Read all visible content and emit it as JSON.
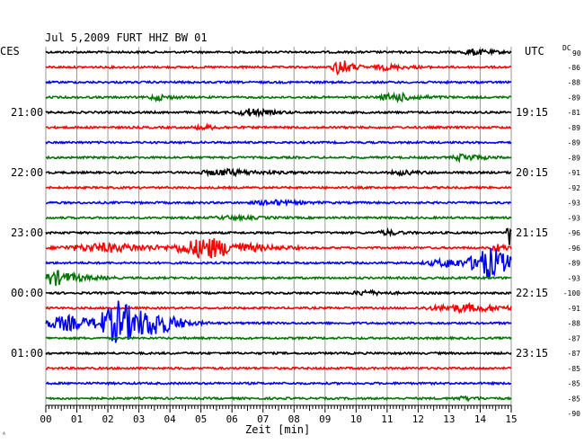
{
  "chart_data": {
    "type": "line",
    "title": "Jul 5,2009   FURT HHZ BW 01",
    "left_header": "CES",
    "right_header": "UTC",
    "dc_header": "DC",
    "dc_header_sub": "90",
    "xlabel": "Zeit [min]",
    "x_ticks": [
      "00",
      "01",
      "02",
      "03",
      "04",
      "05",
      "06",
      "07",
      "08",
      "09",
      "10",
      "11",
      "12",
      "13",
      "14",
      "15"
    ],
    "xlim": [
      0,
      15
    ],
    "trace_colors": [
      "#000000",
      "#ff0000",
      "#0000ff",
      "#007700"
    ],
    "left_time_labels": [
      {
        "trace": 4,
        "label": "21:00"
      },
      {
        "trace": 8,
        "label": "22:00"
      },
      {
        "trace": 12,
        "label": "23:00"
      },
      {
        "trace": 16,
        "label": "00:00"
      },
      {
        "trace": 20,
        "label": "01:00"
      }
    ],
    "right_time_labels": [
      {
        "trace": 4,
        "label": "19:15"
      },
      {
        "trace": 8,
        "label": "20:15"
      },
      {
        "trace": 12,
        "label": "21:15"
      },
      {
        "trace": 16,
        "label": "22:15"
      },
      {
        "trace": 20,
        "label": "23:15"
      }
    ],
    "dc_offsets": [
      "-86",
      "-88",
      "-89",
      "-81",
      "-89",
      "-89",
      "-89",
      "-91",
      "-92",
      "-93",
      "-93",
      "-96",
      "-96",
      "-89",
      "-93",
      "-100",
      "-91",
      "-88",
      "-87",
      "-87",
      "-85",
      "-85",
      "-85",
      "-90"
    ],
    "traces": [
      {
        "index": 0,
        "color": "#000000",
        "events": [
          {
            "t": 13.8,
            "amp": 0.35,
            "dur": 0.6
          }
        ]
      },
      {
        "index": 1,
        "color": "#ff0000",
        "events": [
          {
            "t": 9.5,
            "amp": 1.1,
            "dur": 0.35
          },
          {
            "t": 11.0,
            "amp": 0.3,
            "dur": 0.6
          }
        ]
      },
      {
        "index": 2,
        "color": "#0000ff",
        "events": []
      },
      {
        "index": 3,
        "color": "#007700",
        "events": [
          {
            "t": 3.6,
            "amp": 0.35,
            "dur": 0.4
          },
          {
            "t": 11.3,
            "amp": 0.5,
            "dur": 0.7
          }
        ]
      },
      {
        "index": 4,
        "color": "#000000",
        "events": [
          {
            "t": 6.6,
            "amp": 0.45,
            "dur": 0.6
          }
        ]
      },
      {
        "index": 5,
        "color": "#ff0000",
        "events": [
          {
            "t": 5.1,
            "amp": 0.25,
            "dur": 0.5
          }
        ]
      },
      {
        "index": 6,
        "color": "#0000ff",
        "events": []
      },
      {
        "index": 7,
        "color": "#007700",
        "events": [
          {
            "t": 13.5,
            "amp": 0.45,
            "dur": 0.5
          }
        ]
      },
      {
        "index": 8,
        "color": "#000000",
        "events": [
          {
            "t": 5.8,
            "amp": 0.35,
            "dur": 1.2
          },
          {
            "t": 11.5,
            "amp": 0.25,
            "dur": 0.5
          }
        ]
      },
      {
        "index": 9,
        "color": "#ff0000",
        "events": []
      },
      {
        "index": 10,
        "color": "#0000ff",
        "events": [
          {
            "t": 7.3,
            "amp": 0.3,
            "dur": 0.8
          }
        ]
      },
      {
        "index": 11,
        "color": "#007700",
        "events": [
          {
            "t": 6.0,
            "amp": 0.2,
            "dur": 0.8
          }
        ]
      },
      {
        "index": 12,
        "color": "#000000",
        "events": [
          {
            "t": 11.0,
            "amp": 0.3,
            "dur": 0.4
          },
          {
            "t": 14.95,
            "amp": 1.8,
            "dur": 0.12
          }
        ]
      },
      {
        "index": 13,
        "color": "#ff0000",
        "events": [
          {
            "t": 2.0,
            "amp": 0.5,
            "dur": 2.0
          },
          {
            "t": 5.2,
            "amp": 1.3,
            "dur": 1.2
          },
          {
            "t": 14.6,
            "amp": 0.5,
            "dur": 0.3
          }
        ]
      },
      {
        "index": 14,
        "color": "#0000ff",
        "events": [
          {
            "t": 13.0,
            "amp": 0.5,
            "dur": 1.0
          },
          {
            "t": 14.3,
            "amp": 1.9,
            "dur": 0.8
          }
        ]
      },
      {
        "index": 15,
        "color": "#007700",
        "events": [
          {
            "t": 0.3,
            "amp": 0.9,
            "dur": 0.8
          }
        ]
      },
      {
        "index": 16,
        "color": "#000000",
        "events": [
          {
            "t": 10.3,
            "amp": 0.3,
            "dur": 0.5
          }
        ]
      },
      {
        "index": 17,
        "color": "#ff0000",
        "events": [
          {
            "t": 13.5,
            "amp": 0.45,
            "dur": 1.6
          }
        ]
      },
      {
        "index": 18,
        "color": "#0000ff",
        "events": [
          {
            "t": 0.7,
            "amp": 0.9,
            "dur": 1.2
          },
          {
            "t": 2.4,
            "amp": 2.7,
            "dur": 0.9
          },
          {
            "t": 3.6,
            "amp": 0.9,
            "dur": 0.7
          }
        ]
      },
      {
        "index": 19,
        "color": "#007700",
        "events": []
      },
      {
        "index": 20,
        "color": "#000000",
        "events": []
      },
      {
        "index": 21,
        "color": "#ff0000",
        "events": []
      },
      {
        "index": 22,
        "color": "#0000ff",
        "events": []
      },
      {
        "index": 23,
        "color": "#007700",
        "events": [
          {
            "t": 13.5,
            "amp": 0.2,
            "dur": 0.5
          }
        ]
      }
    ]
  }
}
